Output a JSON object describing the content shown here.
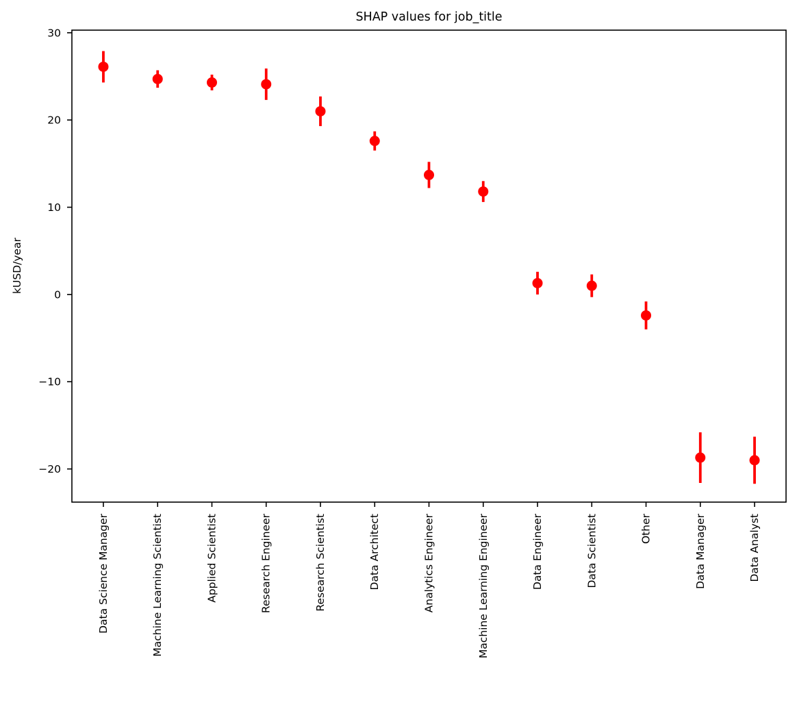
{
  "figure": {
    "background": "#ffffff"
  },
  "chart_data": {
    "type": "scatter",
    "subtype": "errorbar",
    "title": "SHAP values for job_title",
    "ylabel": "kUSD/year",
    "xlabel": "",
    "categories": [
      "Data Science Manager",
      "Machine Learning Scientist",
      "Applied Scientist",
      "Research Engineer",
      "Research Scientist",
      "Data Architect",
      "Analytics Engineer",
      "Machine Learning Engineer",
      "Data Engineer",
      "Data Scientist",
      "Other",
      "Data Manager",
      "Data Analyst"
    ],
    "values": [
      26.1,
      24.7,
      24.3,
      24.1,
      21.0,
      17.6,
      13.7,
      11.8,
      1.3,
      1.0,
      -2.4,
      -18.7,
      -19.0
    ],
    "errors": [
      1.8,
      1.0,
      0.9,
      1.8,
      1.7,
      1.1,
      1.5,
      1.2,
      1.3,
      1.3,
      1.6,
      2.9,
      2.7
    ],
    "yticks": [
      30,
      20,
      10,
      0,
      -10,
      -20
    ],
    "ytick_labels": [
      "30",
      "20",
      "10",
      "0",
      "−10",
      "−20"
    ],
    "ylim": [
      -23.8,
      30.3
    ],
    "xlim": [
      -0.58,
      12.58
    ],
    "x_tick_rotation_deg": 90,
    "grid": false,
    "legend": "none",
    "marker": "circle",
    "marker_color": "#ff0000",
    "errorbar_color": "#ff0000",
    "axis_color": "#000000",
    "text_color": "#000000"
  }
}
